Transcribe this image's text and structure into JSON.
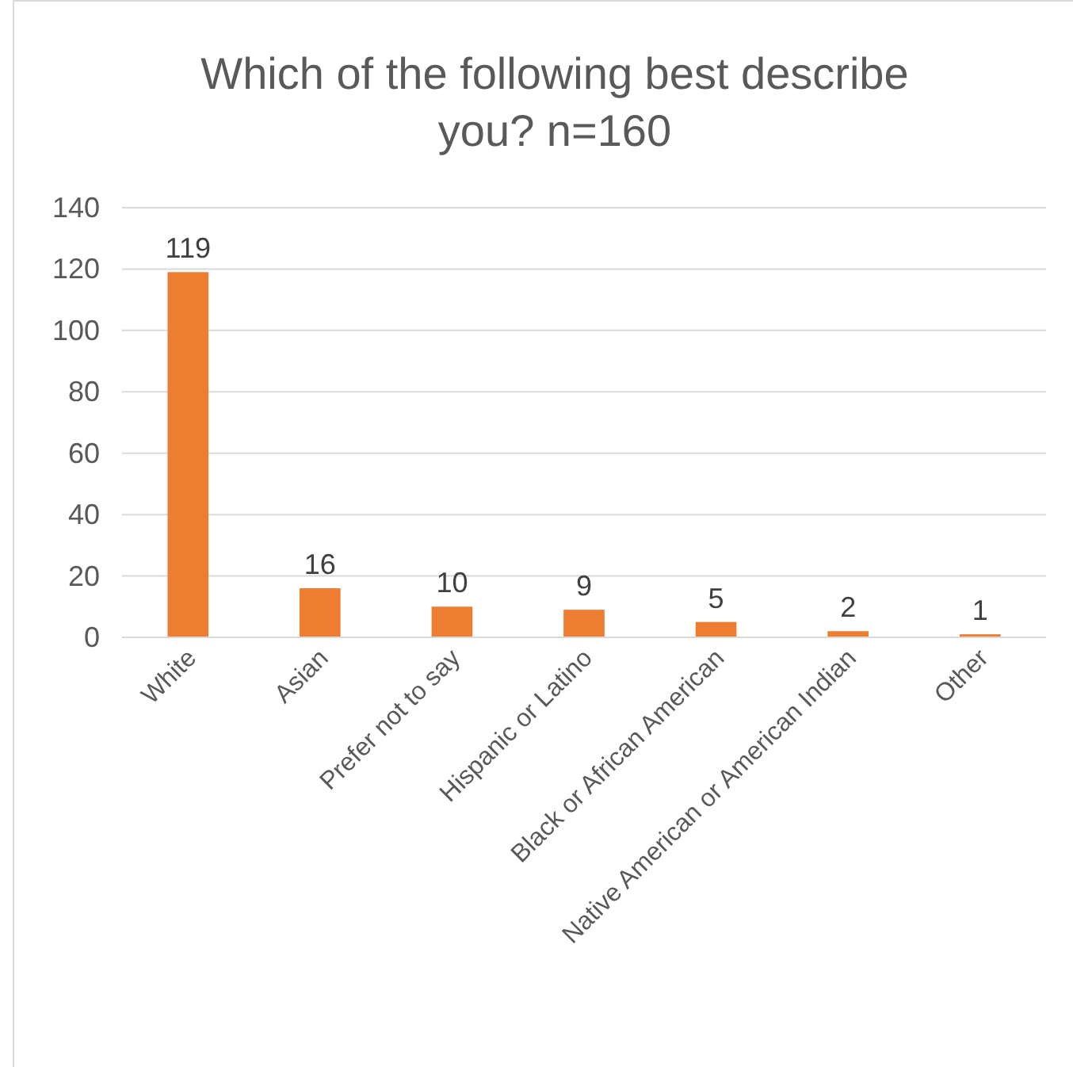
{
  "chart_data": {
    "type": "bar",
    "title": "Which of the following best describe you? n=160",
    "categories": [
      "White",
      "Asian",
      "Prefer not to say",
      "Hispanic or Latino",
      "Black or African American",
      "Native American or American Indian",
      "Other"
    ],
    "values": [
      119,
      16,
      10,
      9,
      5,
      2,
      1
    ],
    "color": "#ed7d31",
    "ylim": [
      0,
      140
    ],
    "yticks": [
      0,
      20,
      40,
      60,
      80,
      100,
      120,
      140
    ],
    "grid": "y",
    "data_labels": true
  }
}
